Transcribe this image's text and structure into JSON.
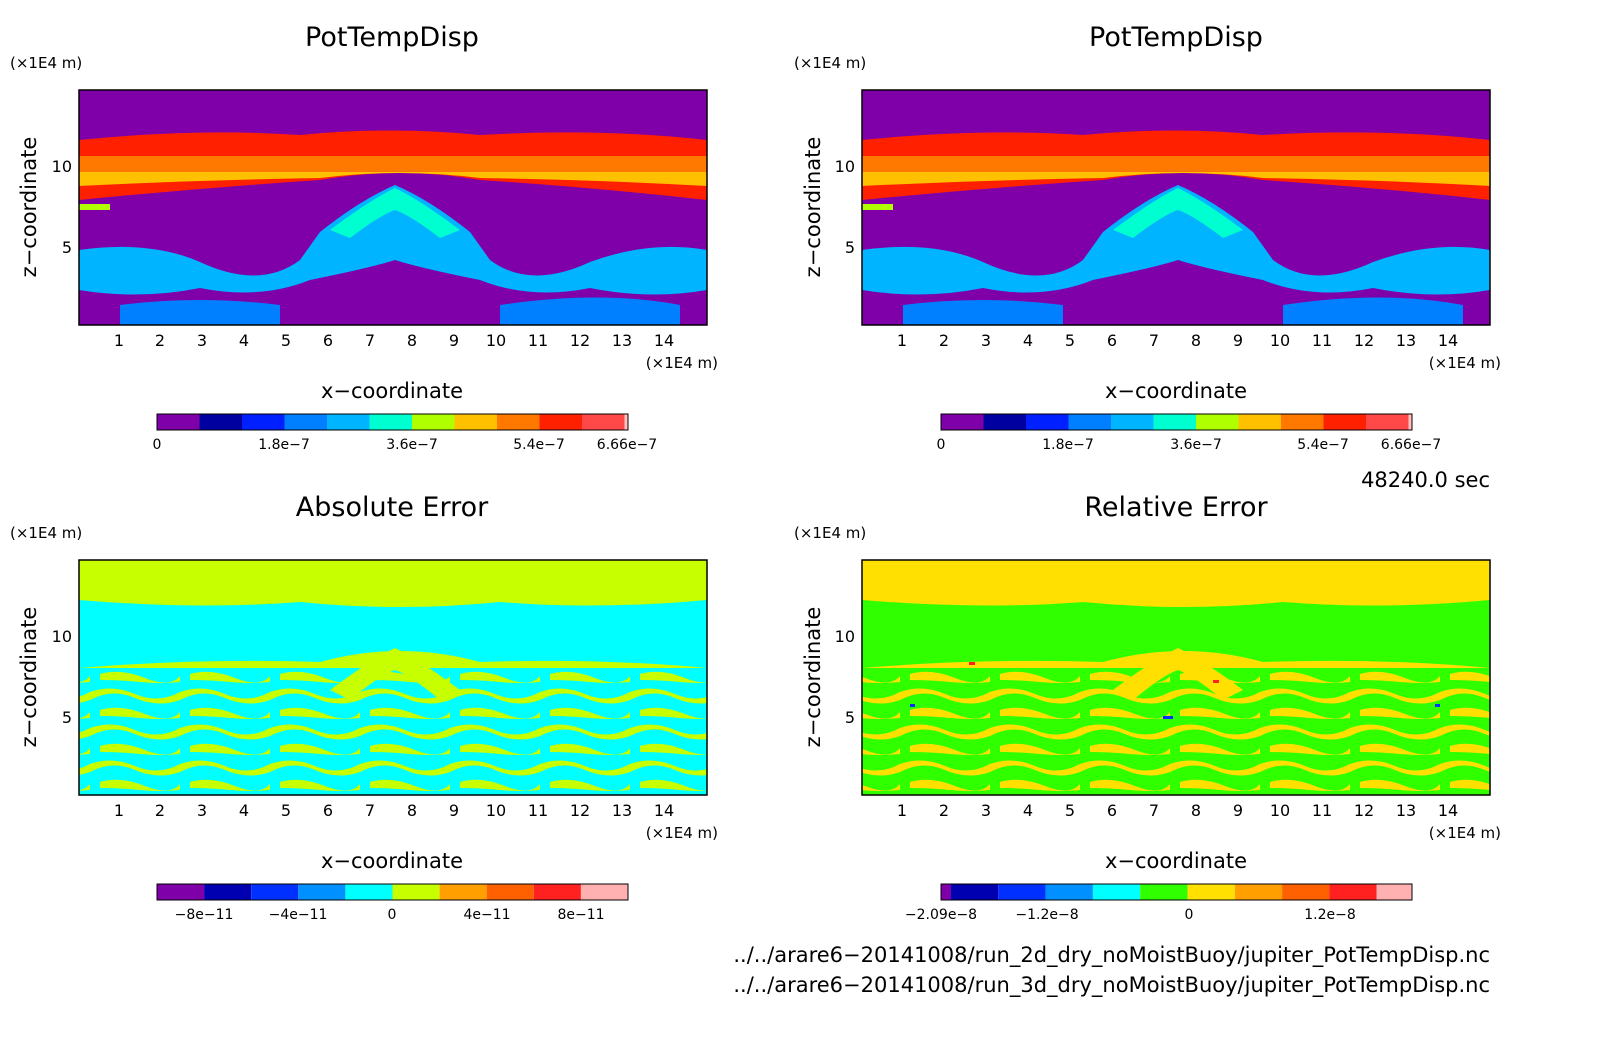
{
  "panels": [
    {
      "title": "PotTempDisp",
      "z_unit": "(×1E4 m)",
      "x_unit": "(×1E4 m)",
      "xlabel": "x−coordinate",
      "ylabel": "z−coordinate",
      "x_ticks": [
        "1",
        "2",
        "3",
        "4",
        "5",
        "6",
        "7",
        "8",
        "9",
        "10",
        "11",
        "12",
        "13",
        "14"
      ],
      "y_ticks": [
        "5",
        "10"
      ],
      "colorbar": {
        "colors": [
          "#7f00a8",
          "#0000a0",
          "#0020ff",
          "#0080ff",
          "#00b4ff",
          "#00ffd0",
          "#b0ff00",
          "#ffc000",
          "#ff7800",
          "#ff2000",
          "#ff4848",
          "#ffc0c0"
        ],
        "labels": [
          "0",
          "1.8e−7",
          "3.6e−7",
          "5.4e−7",
          "6.66e−7"
        ]
      }
    },
    {
      "title": "PotTempDisp",
      "z_unit": "(×1E4 m)",
      "x_unit": "(×1E4 m)",
      "xlabel": "x−coordinate",
      "ylabel": "z−coordinate",
      "x_ticks": [
        "1",
        "2",
        "3",
        "4",
        "5",
        "6",
        "7",
        "8",
        "9",
        "10",
        "11",
        "12",
        "13",
        "14"
      ],
      "y_ticks": [
        "5",
        "10"
      ],
      "colorbar": {
        "colors": [
          "#7f00a8",
          "#0000a0",
          "#0020ff",
          "#0080ff",
          "#00b4ff",
          "#00ffd0",
          "#b0ff00",
          "#ffc000",
          "#ff7800",
          "#ff2000",
          "#ff4848",
          "#ffc0c0"
        ],
        "labels": [
          "0",
          "1.8e−7",
          "3.6e−7",
          "5.4e−7",
          "6.66e−7"
        ]
      }
    },
    {
      "title": "Absolute Error",
      "z_unit": "(×1E4 m)",
      "x_unit": "(×1E4 m)",
      "xlabel": "x−coordinate",
      "ylabel": "z−coordinate",
      "x_ticks": [
        "1",
        "2",
        "3",
        "4",
        "5",
        "6",
        "7",
        "8",
        "9",
        "10",
        "11",
        "12",
        "13",
        "14"
      ],
      "y_ticks": [
        "5",
        "10"
      ],
      "colorbar": {
        "colors": [
          "#7f00a8",
          "#0000b0",
          "#0030ff",
          "#0090ff",
          "#00ffff",
          "#c8ff00",
          "#ffa000",
          "#ff6000",
          "#ff2020",
          "#ffb0b0"
        ],
        "labels": [
          "−8e−11",
          "−4e−11",
          "0",
          "4e−11",
          "8e−11"
        ]
      }
    },
    {
      "title": "Relative Error",
      "z_unit": "(×1E4 m)",
      "x_unit": "(×1E4 m)",
      "xlabel": "x−coordinate",
      "ylabel": "z−coordinate",
      "x_ticks": [
        "1",
        "2",
        "3",
        "4",
        "5",
        "6",
        "7",
        "8",
        "9",
        "10",
        "11",
        "12",
        "13",
        "14"
      ],
      "y_ticks": [
        "5",
        "10"
      ],
      "colorbar": {
        "colors": [
          "#7f00a8",
          "#0000b0",
          "#0030ff",
          "#0090ff",
          "#00ffff",
          "#30ff00",
          "#ffe000",
          "#ffa000",
          "#ff6000",
          "#ff2020",
          "#ffb0b0"
        ],
        "labels": [
          "−2.09e−8",
          "−1.2e−8",
          "0",
          "1.2e−8"
        ]
      }
    }
  ],
  "time_label": "48240.0 sec",
  "file_lines": [
    "../../arare6−20141008/run_2d_dry_noMoistBuoy/jupiter_PotTempDisp.nc",
    "../../arare6−20141008/run_3d_dry_noMoistBuoy/jupiter_PotTempDisp.nc"
  ],
  "chart_data": [
    {
      "type": "heatmap",
      "title": "PotTempDisp",
      "xlabel": "x−coordinate",
      "ylabel": "z−coordinate",
      "xlim": [
        0,
        15
      ],
      "ylim": [
        0,
        14.5
      ],
      "colorbar_ticks": [
        "0",
        "1.8e−7",
        "3.6e−7",
        "5.4e−7",
        "6.66e−7"
      ],
      "levels": [
        0,
        6e-08,
        1.2e-07,
        1.8e-07,
        2.4e-07,
        3e-07,
        3.6e-07,
        4.2e-07,
        4.8e-07,
        5.4e-07,
        6e-07,
        6.66e-07
      ],
      "bands": [
        {
          "z": [
            11.7,
            14.5
          ],
          "value": 0
        },
        {
          "z": [
            11.0,
            11.7
          ],
          "value": "5.4e−7 to 6.0e−7"
        },
        {
          "z": [
            9.8,
            11.0
          ],
          "value": "4.8e−7 to 5.4e−7"
        },
        {
          "z": [
            8.9,
            9.8
          ],
          "value": "4.2e−7 to 4.8e−7"
        },
        {
          "z": [
            3.5,
            8.6
          ],
          "value": "0 with 1.2e−7 to 3.6e−7 plumes"
        },
        {
          "z": [
            0,
            3.5
          ],
          "value": "0 to 1.8e−7"
        }
      ]
    },
    {
      "type": "heatmap",
      "title": "PotTempDisp",
      "xlabel": "x−coordinate",
      "ylabel": "z−coordinate",
      "xlim": [
        0,
        15
      ],
      "ylim": [
        0,
        14.5
      ],
      "colorbar_ticks": [
        "0",
        "1.8e−7",
        "3.6e−7",
        "5.4e−7",
        "6.66e−7"
      ],
      "levels": [
        0,
        6e-08,
        1.2e-07,
        1.8e-07,
        2.4e-07,
        3e-07,
        3.6e-07,
        4.2e-07,
        4.8e-07,
        5.4e-07,
        6e-07,
        6.66e-07
      ]
    },
    {
      "type": "heatmap",
      "title": "Absolute Error",
      "xlabel": "x−coordinate",
      "ylabel": "z−coordinate",
      "xlim": [
        0,
        15
      ],
      "ylim": [
        0,
        14.5
      ],
      "colorbar_ticks": [
        "−8e−11",
        "−4e−11",
        "0",
        "4e−11",
        "8e−11"
      ],
      "levels": [
        -1e-10,
        -8e-11,
        -6e-11,
        -4e-11,
        -2e-11,
        0,
        2e-11,
        4e-11,
        6e-11,
        8e-11,
        1e-10
      ]
    },
    {
      "type": "heatmap",
      "title": "Relative Error",
      "xlabel": "x−coordinate",
      "ylabel": "z−coordinate",
      "xlim": [
        0,
        15
      ],
      "ylim": [
        0,
        14.5
      ],
      "colorbar_ticks": [
        "−2.09e−8",
        "−1.2e−8",
        "0",
        "1.2e−8"
      ],
      "levels": [
        -2.09e-08,
        -1.8e-08,
        -1.5e-08,
        -1.2e-08,
        -6e-09,
        0,
        6e-09,
        9e-09,
        1.2e-08,
        1.5e-08,
        1.8e-08,
        2.09e-08
      ]
    }
  ]
}
